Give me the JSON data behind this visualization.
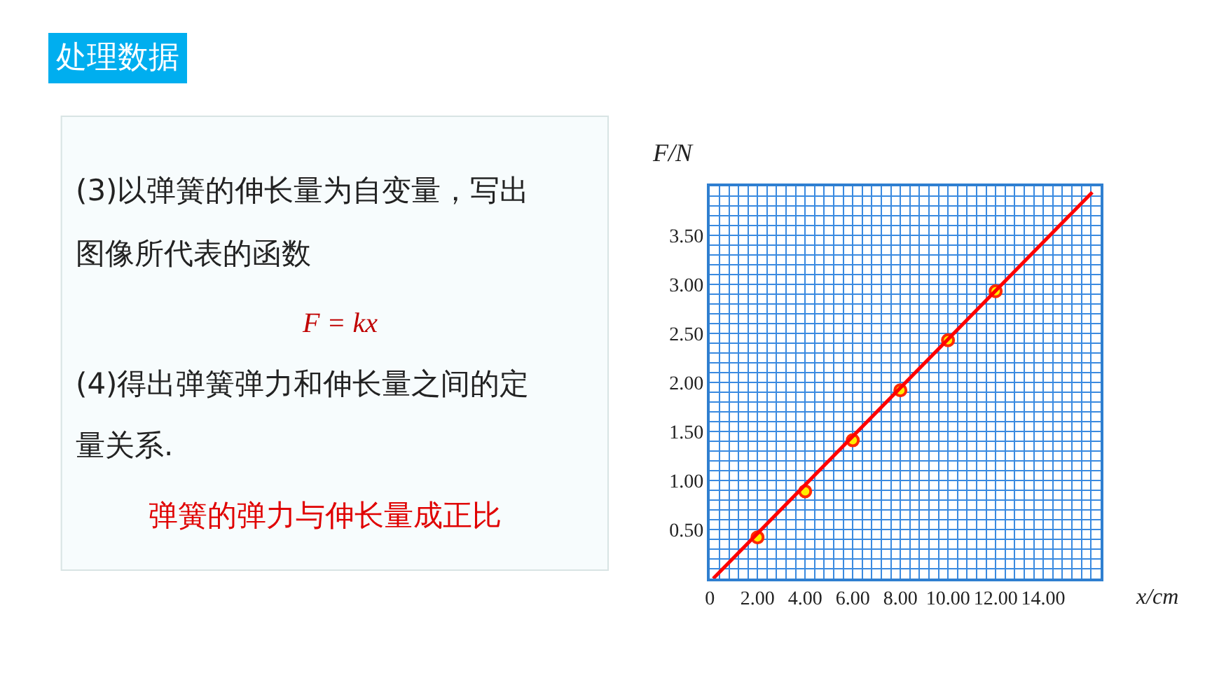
{
  "chart_data": {
    "type": "scatter",
    "title": "处理数据",
    "xlabel": "x/cm",
    "ylabel": "F/N",
    "xlim": [
      0,
      16.4
    ],
    "ylim": [
      0,
      4.0
    ],
    "xticks": [
      0,
      {
        "value": 0.4,
        "label": null
      },
      {
        "value": 0.8,
        "label": null
      },
      {
        "value": 1.2,
        "label": null
      },
      {
        "value": 1.6,
        "label": null
      },
      {
        "value": 2,
        "label": "2.00"
      },
      {
        "value": 2.4,
        "label": null
      },
      {
        "value": 2.8,
        "label": null
      },
      {
        "value": 3.2,
        "label": null
      },
      {
        "value": 3.6,
        "label": null
      },
      {
        "value": 4,
        "label": "4.00"
      },
      {
        "value": 4.4,
        "label": null
      },
      {
        "value": 4.8,
        "label": null
      },
      {
        "value": 5.2,
        "label": null
      },
      {
        "value": 5.6,
        "label": null
      },
      {
        "value": 6,
        "label": "6.00"
      },
      {
        "value": 6.4,
        "label": null
      },
      {
        "value": 6.8,
        "label": null
      },
      {
        "value": 7.2,
        "label": null
      },
      {
        "value": 7.6,
        "label": null
      },
      {
        "value": 8,
        "label": "8.00"
      },
      {
        "value": 8.4,
        "label": null
      },
      {
        "value": 8.8,
        "label": null
      },
      {
        "value": 9.2,
        "label": null
      },
      {
        "value": 9.6,
        "label": null
      },
      {
        "value": 10,
        "label": "10.00"
      },
      {
        "value": 10.4,
        "label": null
      },
      {
        "value": 10.8,
        "label": null
      },
      {
        "value": 11.2,
        "label": null
      },
      {
        "value": 11.6,
        "label": null
      },
      {
        "value": 12,
        "label": "12.00"
      },
      {
        "value": 12.4,
        "label": null
      },
      {
        "value": 12.8,
        "label": null
      },
      {
        "value": 13.2,
        "label": null
      },
      {
        "value": 13.6,
        "label": null
      },
      {
        "value": 14,
        "label": "14.00"
      },
      {
        "value": 14.4,
        "label": null
      },
      {
        "value": 14.8,
        "label": null
      },
      {
        "value": 15.2,
        "label": null
      },
      {
        "value": 15.6,
        "label": null
      },
      {
        "value": 16,
        "label": null
      }
    ],
    "yticks": [
      {
        "value": 0.1,
        "label": null
      },
      {
        "value": 0.2,
        "label": null
      },
      {
        "value": 0.3,
        "label": null
      },
      {
        "value": 0.4,
        "label": null
      },
      {
        "value": 0.5,
        "label": "0.50"
      },
      {
        "value": 0.6,
        "label": null
      },
      {
        "value": 0.7,
        "label": null
      },
      {
        "value": 0.8,
        "label": null
      },
      {
        "value": 0.9,
        "label": null
      },
      {
        "value": 1,
        "label": "1.00"
      },
      {
        "value": 1.1,
        "label": null
      },
      {
        "value": 1.2,
        "label": null
      },
      {
        "value": 1.3,
        "label": null
      },
      {
        "value": 1.4,
        "label": null
      },
      {
        "value": 1.5,
        "label": "1.50"
      },
      {
        "value": 1.6,
        "label": null
      },
      {
        "value": 1.7,
        "label": null
      },
      {
        "value": 1.8,
        "label": null
      },
      {
        "value": 1.9,
        "label": null
      },
      {
        "value": 2,
        "label": "2.00"
      },
      {
        "value": 2.1,
        "label": null
      },
      {
        "value": 2.2,
        "label": null
      },
      {
        "value": 2.3,
        "label": null
      },
      {
        "value": 2.4,
        "label": null
      },
      {
        "value": 2.5,
        "label": "2.50"
      },
      {
        "value": 2.6,
        "label": null
      },
      {
        "value": 2.7,
        "label": null
      },
      {
        "value": 2.8,
        "label": null
      },
      {
        "value": 2.9,
        "label": null
      },
      {
        "value": 3,
        "label": "3.00"
      },
      {
        "value": 3.1,
        "label": null
      },
      {
        "value": 3.2,
        "label": null
      },
      {
        "value": 3.3,
        "label": null
      },
      {
        "value": 3.4,
        "label": null
      },
      {
        "value": 3.5,
        "label": "3.50"
      },
      {
        "value": 3.6,
        "label": null
      },
      {
        "value": 3.7,
        "label": null
      },
      {
        "value": 3.8,
        "label": null
      },
      {
        "value": 3.9,
        "label": null
      }
    ],
    "grid": true,
    "marker": "circle",
    "series": [
      {
        "color": "#ff2a00",
        "x": [
          2,
          4,
          6,
          8,
          10,
          12
        ],
        "values": [
          0.42,
          0.89,
          1.41,
          1.92,
          2.43,
          2.93
        ]
      },
      {
        "type": "line",
        "marker": "none",
        "color": "#ff0000",
        "x": [
          0.14,
          16.06
        ],
        "values": [
          0,
          3.94
        ]
      }
    ],
    "annotations": [
      "(3)以弹簧的伸长量为自变量，写出",
      "图像所代表的函数",
      "F = kx",
      "(4)得出弹簧弹力和伸长量之间的定",
      "量关系.",
      "弹簧的弹力与伸长量成正比"
    ]
  }
}
